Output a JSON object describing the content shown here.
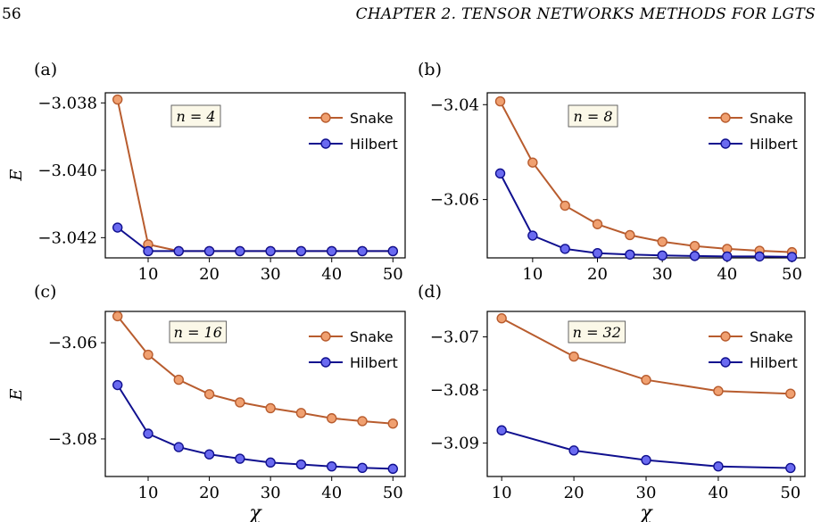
{
  "header": {
    "page_number": "56",
    "chapter_title": "CHAPTER 2.  TENSOR NETWORKS METHODS FOR LGTS"
  },
  "colors": {
    "snake_line": "#b85c2e",
    "snake_marker": "#f0a070",
    "hilbert_line": "#10108f",
    "hilbert_marker": "#6a6af0",
    "annotation_bg": "#fbf8e8"
  },
  "chart_data": [
    {
      "type": "line",
      "panel_label": "(a)",
      "annotation": "n = 4",
      "ylabel": "E",
      "xlabel": "",
      "xlim": [
        3,
        52
      ],
      "ylim": [
        -3.0426,
        -3.0377
      ],
      "xticks": [
        10,
        20,
        30,
        40,
        50
      ],
      "yticks": [
        -3.038,
        -3.04,
        -3.042
      ],
      "ytick_labels": [
        "−3.038",
        "−3.040",
        "−3.042"
      ],
      "legend_position": "top-right",
      "x": [
        5,
        10,
        15,
        20,
        25,
        30,
        35,
        40,
        45,
        50
      ],
      "series": [
        {
          "name": "Snake",
          "values": [
            -3.0379,
            -3.0422,
            -3.0424,
            -3.0424,
            -3.0424,
            -3.0424,
            -3.0424,
            -3.0424,
            -3.0424,
            -3.0424
          ]
        },
        {
          "name": "Hilbert",
          "values": [
            -3.0417,
            -3.0424,
            -3.0424,
            -3.0424,
            -3.0424,
            -3.0424,
            -3.0424,
            -3.0424,
            -3.0424,
            -3.0424
          ]
        }
      ]
    },
    {
      "type": "line",
      "panel_label": "(b)",
      "annotation": "n = 8",
      "ylabel": "",
      "xlabel": "",
      "xlim": [
        3,
        52
      ],
      "ylim": [
        -3.0723,
        -3.0375
      ],
      "xticks": [
        10,
        20,
        30,
        40,
        50
      ],
      "yticks": [
        -3.04,
        -3.06
      ],
      "ytick_labels": [
        "−3.04",
        "−3.06"
      ],
      "legend_position": "top-right",
      "x": [
        5,
        10,
        15,
        20,
        25,
        30,
        35,
        40,
        45,
        50
      ],
      "series": [
        {
          "name": "Snake",
          "values": [
            -3.0393,
            -3.0522,
            -3.0613,
            -3.0652,
            -3.0675,
            -3.0689,
            -3.0698,
            -3.0704,
            -3.0708,
            -3.0711
          ]
        },
        {
          "name": "Hilbert",
          "values": [
            -3.0545,
            -3.0676,
            -3.0704,
            -3.0713,
            -3.0716,
            -3.0718,
            -3.0719,
            -3.072,
            -3.072,
            -3.0721
          ]
        }
      ]
    },
    {
      "type": "line",
      "panel_label": "(c)",
      "annotation": "n = 16",
      "ylabel": "E",
      "xlabel": "χ",
      "xlim": [
        3,
        52
      ],
      "ylim": [
        -3.0878,
        -3.0535
      ],
      "xticks": [
        10,
        20,
        30,
        40,
        50
      ],
      "yticks": [
        -3.06,
        -3.08
      ],
      "ytick_labels": [
        "−3.06",
        "−3.08"
      ],
      "legend_position": "top-right",
      "x": [
        5,
        10,
        15,
        20,
        25,
        30,
        35,
        40,
        45,
        50
      ],
      "series": [
        {
          "name": "Snake",
          "values": [
            -3.0545,
            -3.0625,
            -3.0677,
            -3.0707,
            -3.0724,
            -3.0736,
            -3.0746,
            -3.0757,
            -3.0763,
            -3.0768
          ]
        },
        {
          "name": "Hilbert",
          "values": [
            -3.0688,
            -3.0789,
            -3.0817,
            -3.0832,
            -3.0841,
            -3.0849,
            -3.0853,
            -3.0857,
            -3.086,
            -3.0862
          ]
        }
      ]
    },
    {
      "type": "line",
      "panel_label": "(d)",
      "annotation": "n = 32",
      "ylabel": "",
      "xlabel": "χ",
      "xlim": [
        8,
        52
      ],
      "ylim": [
        -3.0963,
        -3.0652
      ],
      "xticks": [
        10,
        20,
        30,
        40,
        50
      ],
      "yticks": [
        -3.07,
        -3.08,
        -3.09
      ],
      "ytick_labels": [
        "−3.07",
        "−3.08",
        "−3.09"
      ],
      "legend_position": "top-right",
      "x": [
        10,
        20,
        30,
        40,
        50
      ],
      "series": [
        {
          "name": "Snake",
          "values": [
            -3.0665,
            -3.0737,
            -3.0781,
            -3.0802,
            -3.0807
          ]
        },
        {
          "name": "Hilbert",
          "values": [
            -3.0876,
            -3.0914,
            -3.0932,
            -3.0944,
            -3.0947
          ]
        }
      ]
    }
  ]
}
